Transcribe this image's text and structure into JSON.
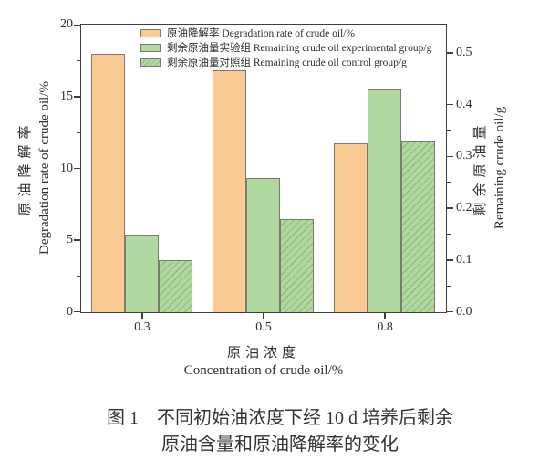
{
  "figure": {
    "caption_line1": "图 1　不同初始油浓度下经 10 d 培养后剩余",
    "caption_line2": "原油含量和原油降解率的变化"
  },
  "chart_data": {
    "type": "bar",
    "categories": [
      "0.3",
      "0.5",
      "0.8"
    ],
    "series": [
      {
        "name": "原油降解率 Degradation rate of crude oil/%",
        "id": "degradation-rate",
        "axis": "left",
        "style": "orange-solid",
        "values": [
          18.0,
          16.9,
          11.8
        ]
      },
      {
        "name": "剩余原油量实验组 Remaining crude oil experimental group/g",
        "id": "remaining-oil-experimental",
        "axis": "right",
        "style": "green-solid",
        "values": [
          0.15,
          0.26,
          0.43
        ]
      },
      {
        "name": "剩余原油量对照组 Remaining crude oil control group/g",
        "id": "remaining-oil-control",
        "axis": "right",
        "style": "green-hatched",
        "values": [
          0.1,
          0.18,
          0.33
        ]
      }
    ],
    "left_axis": {
      "title_zh": "原油降解率",
      "title_en": "Degradation rate of crude oil/%",
      "tick_labels": [
        "0",
        "5",
        "10",
        "15",
        "20"
      ],
      "tick_values": [
        0,
        5,
        10,
        15,
        20
      ],
      "minor_tick_values": [
        2.5,
        7.5,
        12.5,
        17.5
      ],
      "range": [
        0,
        20
      ]
    },
    "right_axis": {
      "title_zh": "剩余原油量",
      "title_en": "Remaining crude oil/g",
      "tick_labels": [
        "0.0",
        "0.1",
        "0.2",
        "0.3",
        "0.4",
        "0.5"
      ],
      "tick_values": [
        0,
        0.1,
        0.2,
        0.3,
        0.4,
        0.5
      ],
      "minor_tick_values": [
        0.05,
        0.15,
        0.25,
        0.35,
        0.45
      ],
      "range": [
        0,
        0.554
      ]
    },
    "x_axis": {
      "title_zh": "原油浓度",
      "title_en": "Concentration of crude oil/%",
      "categories": [
        "0.3",
        "0.5",
        "0.8"
      ]
    },
    "legend_position": "top-inside",
    "grid": false,
    "colors": {
      "bar_orange": "#FACA94",
      "bar_green": "#B2D8A2",
      "hatch_line": "#8FBC7D",
      "bar_border": "#7C7C6E",
      "axis_line": "#3F3F3F",
      "text": "#2E2E2E"
    }
  }
}
